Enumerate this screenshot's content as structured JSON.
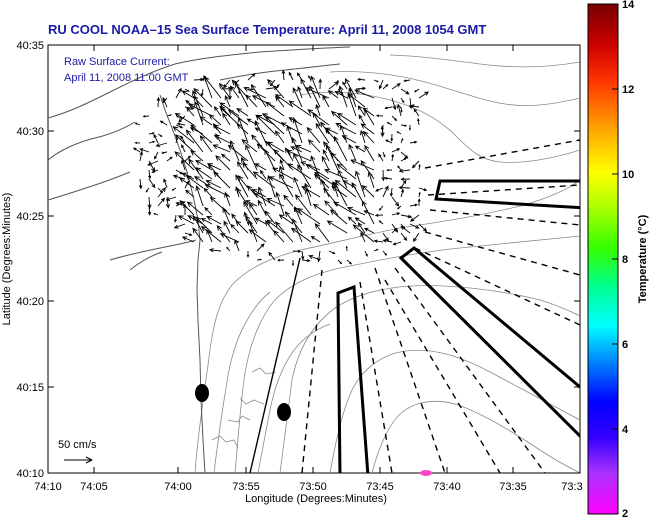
{
  "title": "RU COOL  NOAA–15  Sea Surface Temperature:  April 11, 2008 1054 GMT",
  "annotation": {
    "line1": "Raw Surface Current:",
    "line2": "April 11, 2008 11:00 GMT"
  },
  "scale": {
    "label": "50 cm/s"
  },
  "axes": {
    "xlabel": "Longitude (Degrees:Minutes)",
    "ylabel": "Latitude (Degrees:Minutes)",
    "x_ticks": [
      "74:10",
      "74:05",
      "74:00",
      "73:55",
      "73:50",
      "73:45",
      "73:40",
      "73:35",
      "73:3"
    ],
    "y_ticks": [
      "40:35",
      "40:30",
      "40:25",
      "40:20",
      "40:15",
      "40:10"
    ]
  },
  "colorbar": {
    "label": "Temperature (°C)",
    "ticks": [
      "14",
      "12",
      "10",
      "8",
      "6",
      "4",
      "2"
    ],
    "min": 2,
    "max": 14,
    "colors": [
      "#ff00ff",
      "#6a00ff",
      "#0000ff",
      "#00a0ff",
      "#00ffff",
      "#00ff80",
      "#60ff00",
      "#ffff00",
      "#ffc000",
      "#ff8000",
      "#ff2000",
      "#c00000",
      "#800000"
    ]
  },
  "markers": {
    "color": "#000000",
    "highlight_color": "#ff44cc"
  }
}
